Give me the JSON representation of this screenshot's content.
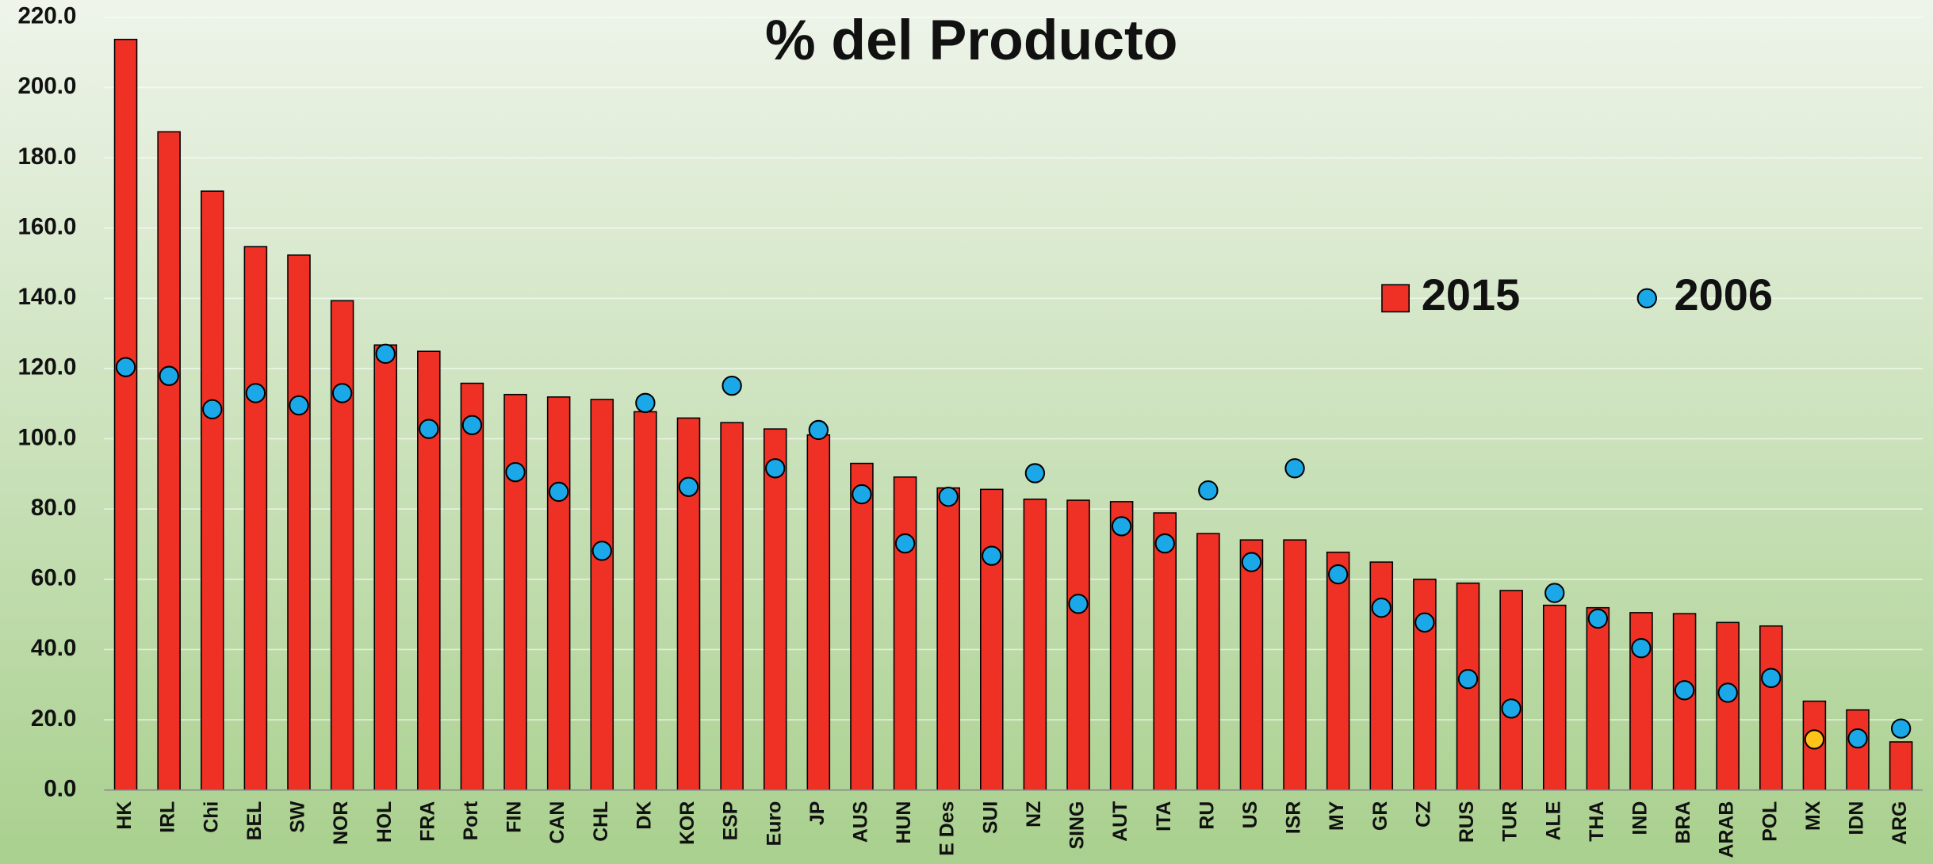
{
  "chart_data": {
    "type": "bar",
    "title": "% del Producto",
    "categories": [
      "HK",
      "IRL",
      "Chi",
      "BEL",
      "SW",
      "NOR",
      "HOL",
      "FRA",
      "Port",
      "FIN",
      "CAN",
      "CHL",
      "DK",
      "KOR",
      "ESP",
      "Euro",
      "JP",
      "AUS",
      "HUN",
      "E Des",
      "SUI",
      "NZ",
      "SING",
      "AUT",
      "ITA",
      "RU",
      "US",
      "ISR",
      "MY",
      "GR",
      "CZ",
      "RUS",
      "TUR",
      "ALE",
      "THA",
      "IND",
      "BRA",
      "ARAB",
      "POL",
      "MX",
      "IDN",
      "ARG"
    ],
    "series": [
      {
        "name": "2015",
        "type": "bar",
        "color": "#ee3124",
        "values": [
          213.7,
          187.4,
          170.5,
          154.7,
          152.3,
          139.3,
          126.7,
          124.9,
          115.8,
          112.6,
          111.9,
          111.2,
          107.7,
          105.9,
          104.6,
          102.8,
          101.1,
          93.0,
          89.1,
          86.0,
          85.6,
          82.8,
          82.5,
          82.1,
          78.9,
          73.0,
          71.2,
          71.2,
          67.7,
          64.9,
          60.0,
          58.9,
          56.8,
          52.6,
          51.9,
          50.5,
          50.2,
          47.7,
          46.7,
          25.3,
          22.8,
          13.7
        ]
      },
      {
        "name": "2006",
        "type": "scatter",
        "color": "#1aa8e8",
        "highlight": {
          "index": 39,
          "color": "#ffc21a"
        },
        "values": [
          120.4,
          117.9,
          108.4,
          113.0,
          109.5,
          113.0,
          124.2,
          102.8,
          103.9,
          90.5,
          84.9,
          68.1,
          110.2,
          86.3,
          115.1,
          91.6,
          102.5,
          84.2,
          70.2,
          83.5,
          66.7,
          90.2,
          53.0,
          75.1,
          70.2,
          85.3,
          64.9,
          91.6,
          61.4,
          51.9,
          47.7,
          31.6,
          23.2,
          56.1,
          48.8,
          40.4,
          28.4,
          27.7,
          31.9,
          14.4,
          14.7,
          17.5
        ]
      }
    ],
    "ylim": [
      0,
      220
    ],
    "yticks": [
      {
        "value": 0,
        "label": "0.0"
      },
      {
        "value": 20,
        "label": "20.0"
      },
      {
        "value": 40,
        "label": "40.0"
      },
      {
        "value": 60,
        "label": "60.0"
      },
      {
        "value": 80,
        "label": "80.0"
      },
      {
        "value": 100,
        "label": "100.0"
      },
      {
        "value": 120,
        "label": "120.0"
      },
      {
        "value": 140,
        "label": "140.0"
      },
      {
        "value": 160,
        "label": "160.0"
      },
      {
        "value": 180,
        "label": "180.0"
      },
      {
        "value": 200,
        "label": "200.0"
      },
      {
        "value": 220,
        "label": "220.0"
      }
    ],
    "grid": true,
    "legend": "upper right"
  }
}
